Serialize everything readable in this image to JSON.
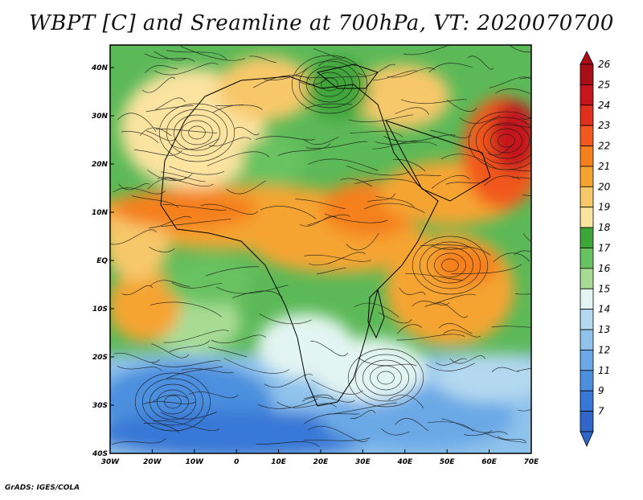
{
  "title": "WBPT [C] and Sreamline at 700hPa, VT: 2020070700",
  "credit": "GrADS: IGES/COLA",
  "map": {
    "lon_ticks": [
      "30W",
      "20W",
      "10W",
      "0",
      "10E",
      "20E",
      "30E",
      "40E",
      "50E",
      "60E",
      "70E"
    ],
    "lat_ticks": [
      "40N",
      "30N",
      "20N",
      "10N",
      "EQ",
      "10S",
      "20S",
      "30S",
      "40S"
    ]
  },
  "colorbar": {
    "levels": [
      "26",
      "25",
      "24",
      "23",
      "22",
      "21",
      "20",
      "19",
      "18",
      "17",
      "16",
      "15",
      "14",
      "13",
      "12",
      "11",
      "9",
      "7"
    ],
    "colors": [
      "#a50f15",
      "#c4161c",
      "#e0301e",
      "#f2591e",
      "#f5801e",
      "#f5a431",
      "#f7c86a",
      "#fbe3a0",
      "#3fa63a",
      "#69c261",
      "#a8dc95",
      "#e3f5f2",
      "#b3d8f0",
      "#8fc3ec",
      "#6aa9e6",
      "#4c8fde",
      "#3778d6",
      "#2f66c8"
    ]
  }
}
